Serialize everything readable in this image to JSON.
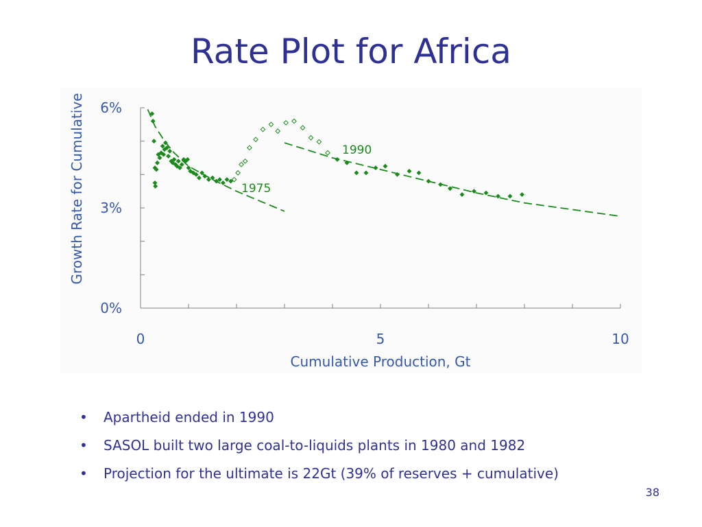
{
  "slide": {
    "title": "Rate Plot for Africa",
    "bullets": [
      "Apartheid ended in 1990",
      "SASOL built two large coal-to-liquids plants in 1980 and 1982",
      "Projection for the ultimate is 22Gt (39% of reserves + cumulative)"
    ],
    "bullet_glyph": "•",
    "page_number": "38",
    "colors": {
      "title": "#2e3192",
      "axis": "#3558a8",
      "series": "#1a8a1a"
    }
  },
  "chart_data": {
    "type": "scatter",
    "title": "",
    "xlabel": "Cumulative Production, Gt",
    "ylabel": "Growth Rate for Cumulative",
    "xlim": [
      0,
      10
    ],
    "ylim": [
      0,
      6
    ],
    "x_ticks": [
      0,
      1,
      2,
      3,
      4,
      5,
      6,
      7,
      8,
      9,
      10
    ],
    "x_tick_labels": [
      {
        "x": 0,
        "label": "0"
      },
      {
        "x": 5,
        "label": "5"
      },
      {
        "x": 10,
        "label": "10"
      }
    ],
    "y_ticks": [
      0,
      1,
      2,
      3,
      4,
      5,
      6
    ],
    "y_tick_labels": [
      {
        "y": 0,
        "label": "0%"
      },
      {
        "y": 3,
        "label": "3%"
      },
      {
        "y": 6,
        "label": "6%"
      }
    ],
    "grid": false,
    "series": [
      {
        "marker": "filled-diamond",
        "points": [
          [
            0.24,
            5.82
          ],
          [
            0.26,
            5.6
          ],
          [
            0.28,
            5.0
          ],
          [
            0.3,
            4.2
          ],
          [
            0.3,
            3.75
          ],
          [
            0.31,
            3.65
          ],
          [
            0.33,
            4.15
          ],
          [
            0.35,
            4.35
          ],
          [
            0.37,
            4.6
          ],
          [
            0.4,
            4.5
          ],
          [
            0.43,
            4.65
          ],
          [
            0.46,
            4.85
          ],
          [
            0.48,
            4.6
          ],
          [
            0.5,
            4.75
          ],
          [
            0.52,
            4.95
          ],
          [
            0.55,
            4.8
          ],
          [
            0.58,
            4.55
          ],
          [
            0.61,
            4.7
          ],
          [
            0.64,
            4.4
          ],
          [
            0.67,
            4.35
          ],
          [
            0.7,
            4.45
          ],
          [
            0.73,
            4.3
          ],
          [
            0.76,
            4.25
          ],
          [
            0.79,
            4.4
          ],
          [
            0.82,
            4.2
          ],
          [
            0.86,
            4.3
          ],
          [
            0.9,
            4.45
          ],
          [
            0.94,
            4.4
          ],
          [
            0.98,
            4.45
          ],
          [
            1.0,
            4.2
          ],
          [
            1.04,
            4.1
          ],
          [
            1.1,
            4.05
          ],
          [
            1.16,
            4.0
          ],
          [
            1.22,
            3.9
          ],
          [
            1.28,
            4.05
          ],
          [
            1.34,
            3.95
          ],
          [
            1.42,
            3.85
          ],
          [
            1.5,
            3.9
          ],
          [
            1.58,
            3.8
          ],
          [
            1.65,
            3.85
          ],
          [
            1.72,
            3.75
          ],
          [
            1.8,
            3.85
          ],
          [
            1.88,
            3.8
          ]
        ]
      },
      {
        "marker": "open-diamond",
        "points": [
          [
            1.95,
            3.85
          ],
          [
            2.03,
            4.05
          ],
          [
            2.1,
            4.3
          ],
          [
            2.18,
            4.4
          ],
          [
            2.27,
            4.8
          ],
          [
            2.4,
            5.05
          ],
          [
            2.55,
            5.35
          ],
          [
            2.72,
            5.5
          ],
          [
            2.86,
            5.3
          ],
          [
            3.03,
            5.55
          ],
          [
            3.2,
            5.6
          ],
          [
            3.38,
            5.4
          ],
          [
            3.55,
            5.1
          ],
          [
            3.72,
            4.98
          ],
          [
            3.9,
            4.65
          ]
        ]
      },
      {
        "marker": "filled-diamond",
        "points": [
          [
            4.1,
            4.45
          ],
          [
            4.3,
            4.35
          ],
          [
            4.5,
            4.05
          ],
          [
            4.7,
            4.05
          ],
          [
            4.9,
            4.2
          ],
          [
            5.1,
            4.25
          ],
          [
            5.35,
            4.0
          ],
          [
            5.6,
            4.1
          ],
          [
            5.8,
            4.05
          ],
          [
            6.0,
            3.8
          ],
          [
            6.25,
            3.7
          ],
          [
            6.45,
            3.58
          ],
          [
            6.7,
            3.4
          ],
          [
            6.95,
            3.5
          ],
          [
            7.2,
            3.45
          ],
          [
            7.45,
            3.35
          ],
          [
            7.7,
            3.35
          ],
          [
            7.95,
            3.4
          ]
        ]
      }
    ],
    "trend_lines": [
      {
        "style": "dashed",
        "points": [
          [
            0.15,
            5.95
          ],
          [
            0.3,
            5.45
          ],
          [
            0.5,
            5.0
          ],
          [
            0.7,
            4.65
          ],
          [
            1.0,
            4.25
          ],
          [
            1.5,
            3.85
          ],
          [
            2.0,
            3.5
          ],
          [
            2.5,
            3.2
          ],
          [
            3.0,
            2.9
          ]
        ]
      },
      {
        "style": "dashed",
        "points": [
          [
            3.0,
            4.95
          ],
          [
            4.0,
            4.5
          ],
          [
            5.0,
            4.15
          ],
          [
            6.0,
            3.8
          ],
          [
            7.0,
            3.45
          ],
          [
            8.0,
            3.15
          ],
          [
            9.0,
            2.95
          ],
          [
            10.0,
            2.75
          ]
        ]
      }
    ],
    "annotations": [
      {
        "text": "1990",
        "x": 4.2,
        "y": 4.75
      },
      {
        "text": "1975",
        "x": 2.1,
        "y": 3.6
      }
    ]
  }
}
